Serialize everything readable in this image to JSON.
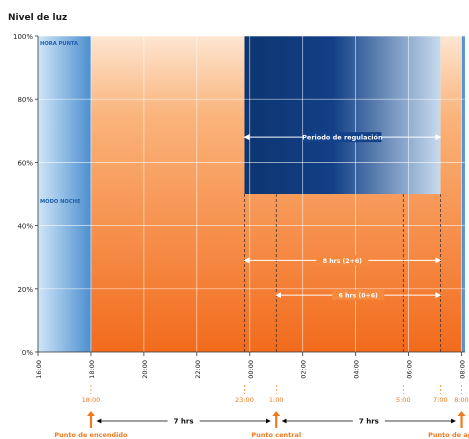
{
  "chart_data": {
    "type": "area",
    "title": "Nivel de luz",
    "ylim": [
      0,
      100
    ],
    "y_ticks": [
      0,
      20,
      40,
      60,
      80,
      100
    ],
    "y_tick_labels": [
      "0%",
      "20%",
      "40%",
      "60%",
      "80%",
      "100%"
    ],
    "xlim": [
      16,
      33
    ],
    "x_ticks": [
      16,
      18,
      20,
      22,
      24,
      26,
      28,
      30,
      32
    ],
    "x_tick_labels": [
      "16:00",
      "18:00",
      "20:00",
      "22:00",
      "00:00",
      "02:00",
      "04:00",
      "06:00",
      "08:00"
    ],
    "grid": true,
    "series": [
      {
        "name": "",
        "x": [
          16,
          18,
          18,
          23.8,
          23.8,
          31.2,
          31.2,
          32
        ],
        "values": [
          0,
          0,
          100,
          100,
          50,
          50,
          100,
          100
        ]
      }
    ],
    "bands": [
      {
        "label": "HORA PUNTA",
        "level": 100
      },
      {
        "label": "MODO NOCHE",
        "level": 50
      }
    ],
    "regulation_band": {
      "label": "Periodo de regulación",
      "x_start": 23.8,
      "x_end": 31.2,
      "y_low": 50,
      "y_high": 100
    },
    "dashed_markers": [
      23.8,
      25,
      29.8,
      31.2
    ],
    "duration_arrows": [
      {
        "label": "8 hrs (2+6)",
        "x_start": 23.8,
        "x_end": 31.2,
        "y": 29
      },
      {
        "label": "6 hrs (0+6)",
        "x_start": 25,
        "x_end": 31.2,
        "y": 18
      }
    ],
    "events": [
      {
        "time": "18:00",
        "x": 18,
        "label": "Punto de encendido"
      },
      {
        "time": "23:00",
        "x": 23.8,
        "label": ""
      },
      {
        "time": "1:00",
        "x": 25,
        "label": "Punto central"
      },
      {
        "time": "5:00",
        "x": 29.8,
        "label": ""
      },
      {
        "time": "7:00",
        "x": 31.2,
        "label": ""
      },
      {
        "time": "8:00",
        "x": 32,
        "label": "Punto de apagado"
      }
    ],
    "interval_labels": [
      {
        "label": "7 hrs",
        "x_start": 18,
        "x_end": 25
      },
      {
        "label": "7 hrs",
        "x_start": 25,
        "x_end": 32
      }
    ]
  },
  "colors": {
    "orange_top": "#fbcaa0",
    "orange_bottom": "#f26f1f",
    "blue_dark": "#0f3a78",
    "blue_light": "#c9e3f7",
    "event_orange": "#f07a20",
    "axis": "#333333"
  }
}
